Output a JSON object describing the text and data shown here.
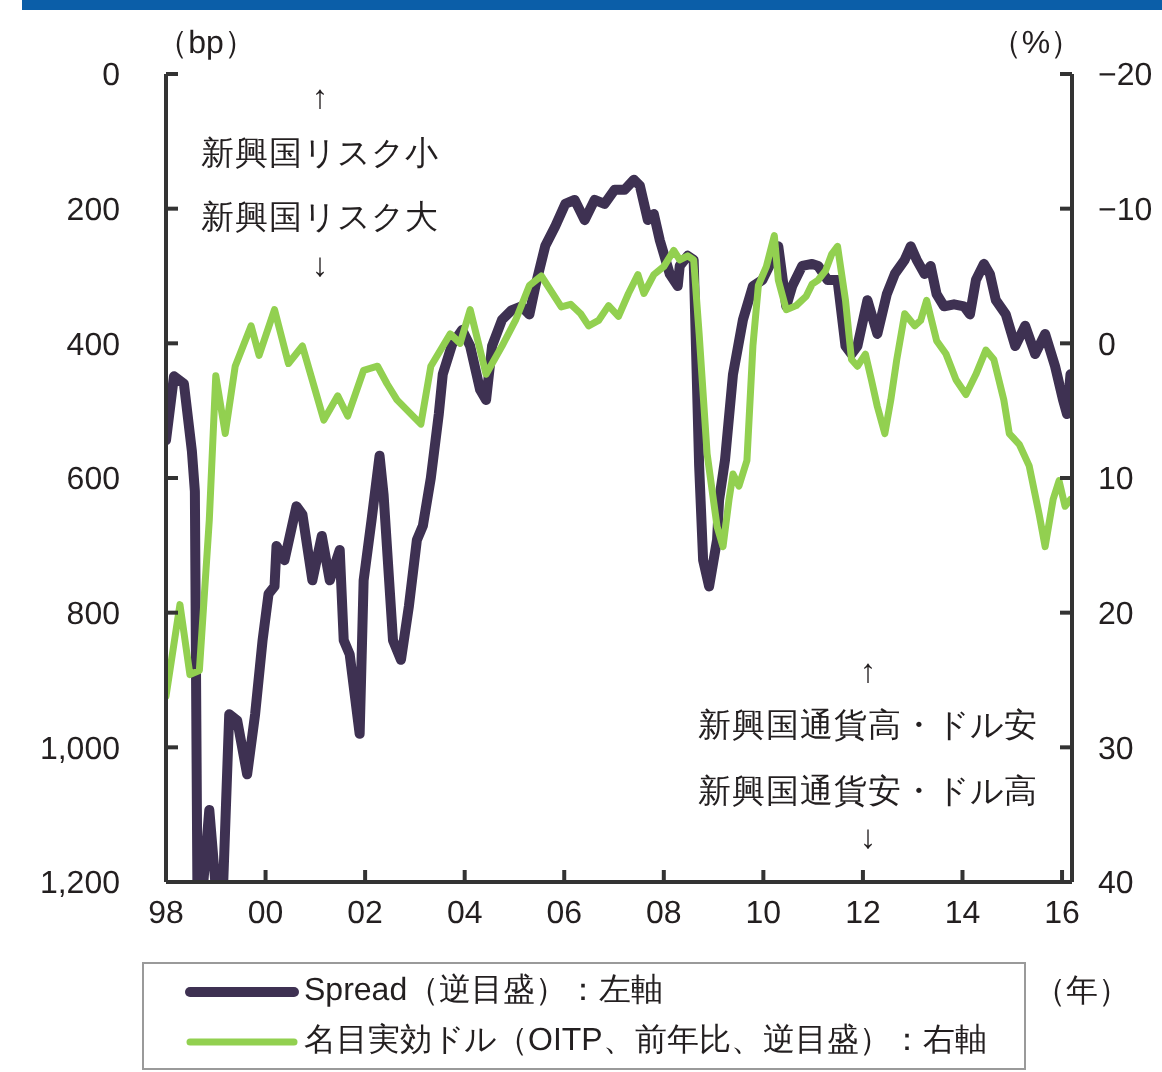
{
  "chart_data": {
    "type": "line",
    "ylabel": "（bp）",
    "y2label": "（%）",
    "xlabel": "（年）",
    "annotations": [
      "↑",
      "新興国リスク小",
      "新興国リスク大",
      "↓",
      "↑",
      "新興国通貨高・ドル安",
      "新興国通貨安・ドル高",
      "↓"
    ],
    "xlim": [
      1998,
      2016.2
    ],
    "xticks": [
      {
        "value": 1998,
        "label": "98"
      },
      {
        "value": 2000,
        "label": "00"
      },
      {
        "value": 2002,
        "label": "02"
      },
      {
        "value": 2004,
        "label": "04"
      },
      {
        "value": 2006,
        "label": "06"
      },
      {
        "value": 2008,
        "label": "08"
      },
      {
        "value": 2010,
        "label": "10"
      },
      {
        "value": 2012,
        "label": "12"
      },
      {
        "value": 2014,
        "label": "14"
      },
      {
        "value": 2016,
        "label": "16"
      }
    ],
    "ylim": [
      1200,
      0
    ],
    "yticks": [
      0,
      200,
      400,
      600,
      800,
      {
        "value": 1000,
        "label": "1,000"
      },
      {
        "value": 1200,
        "label": "1,200"
      }
    ],
    "y2lim": [
      40,
      -20
    ],
    "y2ticks": [
      {
        "value": -20,
        "label": "−20"
      },
      {
        "value": -10,
        "label": "−10"
      },
      0,
      10,
      20,
      30,
      40
    ],
    "legend": "bottom",
    "series": [
      {
        "name": "Spread（逆目盛）：左軸",
        "color": "#3e3152",
        "x": [
          1998.0,
          1998.16,
          1998.36,
          1998.52,
          1998.58,
          1998.63,
          1998.75,
          1998.87,
          1998.99,
          1999.15,
          1999.27,
          1999.43,
          1999.63,
          1999.79,
          1999.94,
          2000.06,
          2000.18,
          2000.22,
          2000.38,
          2000.62,
          2000.74,
          2000.94,
          2001.13,
          2001.29,
          2001.49,
          2001.57,
          2001.69,
          2001.89,
          2001.97,
          2002.13,
          2002.29,
          2002.37,
          2002.56,
          2002.72,
          2002.88,
          2003.04,
          2003.16,
          2003.32,
          2003.48,
          2003.56,
          2003.75,
          2003.95,
          2004.11,
          2004.31,
          2004.43,
          2004.55,
          2004.75,
          2004.94,
          2005.14,
          2005.3,
          2005.42,
          2005.62,
          2005.82,
          2006.02,
          2006.21,
          2006.41,
          2006.61,
          2006.81,
          2007.01,
          2007.21,
          2007.4,
          2007.52,
          2007.68,
          2007.8,
          2007.92,
          2008.12,
          2008.28,
          2008.32,
          2008.48,
          2008.6,
          2008.71,
          2008.79,
          2008.91,
          2009.07,
          2009.11,
          2009.23,
          2009.39,
          2009.59,
          2009.79,
          2009.98,
          2010.18,
          2010.3,
          2010.46,
          2010.58,
          2010.78,
          2010.98,
          2011.1,
          2011.29,
          2011.49,
          2011.65,
          2011.77,
          2011.89,
          2012.09,
          2012.29,
          2012.48,
          2012.64,
          2012.84,
          2012.96,
          2013.08,
          2013.24,
          2013.36,
          2013.48,
          2013.63,
          2013.83,
          2014.03,
          2014.15,
          2014.27,
          2014.43,
          2014.55,
          2014.67,
          2014.87,
          2015.06,
          2015.26,
          2015.46,
          2015.66,
          2015.86,
          2016.02,
          2016.1,
          2016.17
        ],
        "values": [
          544,
          449,
          460,
          560,
          620,
          1200,
          1200,
          1093,
          1200,
          1200,
          951,
          960,
          1040,
          951,
          841,
          772,
          761,
          701,
          722,
          642,
          654,
          752,
          686,
          752,
          707,
          841,
          862,
          980,
          752,
          662,
          567,
          624,
          841,
          870,
          790,
          692,
          671,
          600,
          505,
          446,
          401,
          380,
          404,
          469,
          484,
          404,
          365,
          351,
          345,
          357,
          315,
          255,
          226,
          193,
          187,
          217,
          187,
          193,
          172,
          172,
          157,
          166,
          217,
          208,
          247,
          297,
          315,
          285,
          270,
          276,
          582,
          722,
          761,
          692,
          633,
          573,
          446,
          365,
          315,
          306,
          276,
          256,
          345,
          315,
          285,
          282,
          285,
          306,
          306,
          404,
          416,
          404,
          336,
          386,
          327,
          297,
          276,
          256,
          276,
          297,
          285,
          327,
          345,
          342,
          345,
          357,
          306,
          282,
          297,
          336,
          357,
          404,
          374,
          416,
          386,
          434,
          484,
          505,
          446
        ]
      },
      {
        "name": "名目実効ドル（OITP、前年比、逆目盛）：右軸",
        "color": "#92d050",
        "axis": "y2",
        "x": [
          1998.0,
          1998.28,
          1998.48,
          1998.67,
          1998.87,
          1999.0,
          1999.19,
          1999.39,
          1999.71,
          1999.87,
          2000.18,
          2000.46,
          2000.74,
          2001.17,
          2001.45,
          2001.65,
          2001.97,
          2002.25,
          2002.44,
          2002.64,
          2003.12,
          2003.32,
          2003.71,
          2003.91,
          2004.11,
          2004.43,
          2004.75,
          2005.02,
          2005.3,
          2005.54,
          2005.94,
          2006.13,
          2006.33,
          2006.49,
          2006.69,
          2006.89,
          2007.09,
          2007.29,
          2007.48,
          2007.6,
          2007.8,
          2008.0,
          2008.2,
          2008.32,
          2008.48,
          2008.6,
          2008.71,
          2008.87,
          2009.07,
          2009.19,
          2009.31,
          2009.39,
          2009.51,
          2009.67,
          2009.79,
          2009.9,
          2010.06,
          2010.22,
          2010.3,
          2010.46,
          2010.66,
          2010.86,
          2010.98,
          2011.1,
          2011.25,
          2011.37,
          2011.49,
          2011.65,
          2011.77,
          2011.89,
          2012.05,
          2012.17,
          2012.29,
          2012.44,
          2012.56,
          2012.68,
          2012.84,
          2013.04,
          2013.16,
          2013.28,
          2013.48,
          2013.67,
          2013.87,
          2014.07,
          2014.27,
          2014.47,
          2014.63,
          2014.83,
          2014.94,
          2015.14,
          2015.34,
          2015.54,
          2015.66,
          2015.82,
          2015.94,
          2016.06,
          2016.17
        ],
        "values": [
          26.2,
          19.4,
          24.6,
          24.3,
          13.1,
          2.4,
          6.7,
          1.7,
          -1.3,
          0.9,
          -2.5,
          1.5,
          0.2,
          5.7,
          3.9,
          5.4,
          2.0,
          1.7,
          3.0,
          4.2,
          6.0,
          1.7,
          -0.7,
          0.0,
          -2.5,
          2.3,
          0.2,
          -1.7,
          -4.3,
          -5.0,
          -2.7,
          -2.9,
          -2.2,
          -1.3,
          -1.7,
          -2.8,
          -2.0,
          -3.7,
          -5.1,
          -3.7,
          -5.1,
          -5.7,
          -6.9,
          -6.2,
          -6.5,
          -6.2,
          -0.7,
          8.2,
          13.6,
          15.1,
          11.6,
          9.7,
          10.6,
          8.7,
          0.2,
          -4.3,
          -5.7,
          -8.0,
          -4.7,
          -2.5,
          -2.8,
          -3.5,
          -4.4,
          -4.7,
          -5.4,
          -6.6,
          -7.2,
          -3.2,
          1.2,
          1.7,
          0.8,
          2.7,
          4.7,
          6.7,
          4.2,
          1.2,
          -2.2,
          -1.3,
          -1.7,
          -3.2,
          -0.2,
          0.8,
          2.7,
          3.8,
          2.3,
          0.5,
          1.2,
          4.2,
          6.7,
          7.5,
          9.1,
          12.7,
          15.1,
          11.6,
          10.2,
          12.1,
          11.6
        ]
      }
    ]
  }
}
